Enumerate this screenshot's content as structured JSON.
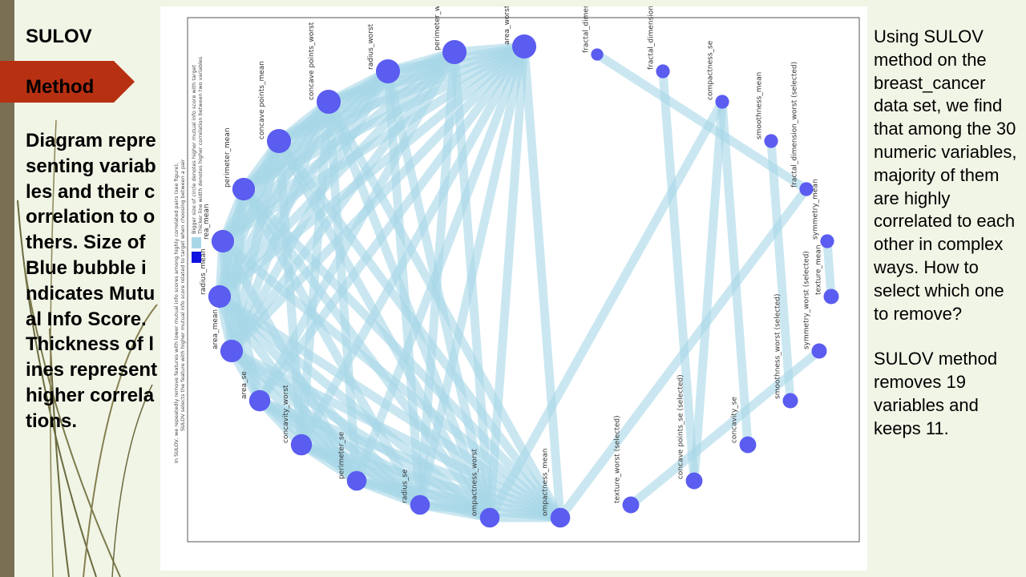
{
  "slide": {
    "title": "SULOV",
    "banner": "Method",
    "left_description": "Diagram representing variables and their correlation to others. Size of Blue bubble indicates Mutual Info Score. Thickness of lines represent higher correlations.",
    "right_paragraph_1": "Using SULOV method on the breast_cancer data set, we find that among the 30 numeric variables, majority of them are highly correlated to each other in complex ways. How to select which one to remove?",
    "right_paragraph_2": "SULOV method removes 19 variables and keeps 11."
  },
  "colors": {
    "node": "#5b5cf0",
    "edge": "#a8d8e8",
    "banner": "#b83012",
    "background": "#f1f5e6"
  },
  "diagram": {
    "legend": {
      "item1": "Bigger size of circle denotes higher mutual info score with target",
      "item2": "Thicker line width denotes higher correlation between two variables"
    },
    "note_line1": "In SULOV, we repeatedly remove features with lower mutual info scores among highly correlated pairs (see figure),",
    "note_line2": "SULOV selects the feature with higher mutual info score related to target when choosing between a pair",
    "nodes": [
      {
        "label": "area_worst (sel",
        "size": 12
      },
      {
        "label": "perimeter_wo",
        "size": 12
      },
      {
        "label": "radius_worst",
        "size": 12
      },
      {
        "label": "concave points_worst",
        "size": 12
      },
      {
        "label": "concave points_mean",
        "size": 12
      },
      {
        "label": "perimeter_mean",
        "size": 11
      },
      {
        "label": "rea_mean",
        "size": 11
      },
      {
        "label": "radius_mean",
        "size": 11
      },
      {
        "label": "area_mean",
        "size": 11
      },
      {
        "label": "area_se",
        "size": 10
      },
      {
        "label": "concavity_worst",
        "size": 10
      },
      {
        "label": "perimeter_se",
        "size": 9
      },
      {
        "label": "radius_se",
        "size": 9
      },
      {
        "label": "ompactness_worst",
        "size": 9
      },
      {
        "label": "ompactness_mean",
        "size": 9
      },
      {
        "label": "texture_worst (selected)",
        "size": 7
      },
      {
        "label": "concave points_se (selected)",
        "size": 7
      },
      {
        "label": "concavity_se",
        "size": 7
      },
      {
        "label": "smoothness_worst (selected)",
        "size": 6
      },
      {
        "label": "symmetry_worst (selected)",
        "size": 6
      },
      {
        "label": "texture_mean",
        "size": 6
      },
      {
        "label": "symmetry_mean",
        "size": 5
      },
      {
        "label": "fractal_dimension_worst (selected)",
        "size": 5
      },
      {
        "label": "smoothness_mean",
        "size": 5
      },
      {
        "label": "compactness_se",
        "size": 5
      },
      {
        "label": "fractal_dimension_se (select",
        "size": 5
      },
      {
        "label": "fractal_dimension",
        "size": 4
      }
    ],
    "edges": [
      [
        0,
        1
      ],
      [
        0,
        2
      ],
      [
        0,
        3
      ],
      [
        0,
        4
      ],
      [
        0,
        5
      ],
      [
        0,
        6
      ],
      [
        0,
        7
      ],
      [
        0,
        8
      ],
      [
        0,
        9
      ],
      [
        0,
        10
      ],
      [
        0,
        11
      ],
      [
        0,
        12
      ],
      [
        0,
        13
      ],
      [
        0,
        14
      ],
      [
        1,
        2
      ],
      [
        1,
        3
      ],
      [
        1,
        4
      ],
      [
        1,
        5
      ],
      [
        1,
        6
      ],
      [
        1,
        7
      ],
      [
        1,
        8
      ],
      [
        1,
        9
      ],
      [
        1,
        12
      ],
      [
        1,
        13
      ],
      [
        2,
        3
      ],
      [
        2,
        4
      ],
      [
        2,
        5
      ],
      [
        2,
        6
      ],
      [
        2,
        7
      ],
      [
        2,
        8
      ],
      [
        2,
        12
      ],
      [
        2,
        13
      ],
      [
        3,
        4
      ],
      [
        3,
        5
      ],
      [
        3,
        6
      ],
      [
        3,
        7
      ],
      [
        3,
        8
      ],
      [
        3,
        10
      ],
      [
        3,
        11
      ],
      [
        3,
        13
      ],
      [
        3,
        14
      ],
      [
        4,
        5
      ],
      [
        4,
        6
      ],
      [
        4,
        7
      ],
      [
        4,
        8
      ],
      [
        4,
        10
      ],
      [
        4,
        13
      ],
      [
        4,
        14
      ],
      [
        5,
        6
      ],
      [
        5,
        7
      ],
      [
        5,
        8
      ],
      [
        5,
        12
      ],
      [
        5,
        13
      ],
      [
        5,
        14
      ],
      [
        6,
        7
      ],
      [
        6,
        8
      ],
      [
        6,
        9
      ],
      [
        6,
        11
      ],
      [
        6,
        14
      ],
      [
        7,
        8
      ],
      [
        7,
        9
      ],
      [
        7,
        11
      ],
      [
        7,
        12
      ],
      [
        7,
        13
      ],
      [
        7,
        14
      ],
      [
        8,
        9
      ],
      [
        8,
        11
      ],
      [
        8,
        12
      ],
      [
        8,
        13
      ],
      [
        8,
        14
      ],
      [
        9,
        10
      ],
      [
        9,
        11
      ],
      [
        9,
        12
      ],
      [
        9,
        13
      ],
      [
        9,
        14
      ],
      [
        10,
        11
      ],
      [
        10,
        12
      ],
      [
        10,
        13
      ],
      [
        10,
        14
      ],
      [
        11,
        12
      ],
      [
        11,
        13
      ],
      [
        11,
        14
      ],
      [
        12,
        13
      ],
      [
        12,
        14
      ],
      [
        13,
        14
      ],
      [
        13,
        24
      ],
      [
        14,
        22
      ],
      [
        15,
        19
      ],
      [
        16,
        24
      ],
      [
        16,
        25
      ],
      [
        17,
        24
      ],
      [
        18,
        23
      ],
      [
        20,
        21
      ],
      [
        26,
        22
      ]
    ]
  }
}
